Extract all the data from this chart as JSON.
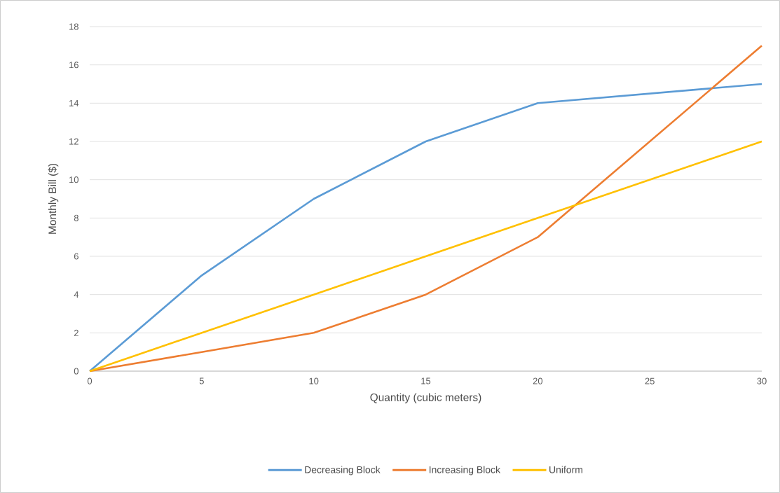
{
  "chart_data": {
    "type": "line",
    "xlabel": "Quantity (cubic meters)",
    "ylabel": "Monthly Bill ($)",
    "xlim": [
      0,
      30
    ],
    "xticks": [
      0,
      5,
      10,
      15,
      20,
      25,
      30
    ],
    "ylim": [
      0,
      18
    ],
    "yticks": [
      0,
      2,
      4,
      6,
      8,
      10,
      12,
      14,
      16,
      18
    ],
    "grid": "y",
    "legend": "bottom",
    "series": [
      {
        "name": "Decreasing Block",
        "color": "#5b9bd5",
        "x": [
          0,
          5,
          10,
          15,
          20,
          30
        ],
        "values": [
          0,
          5,
          9,
          12,
          14,
          15
        ]
      },
      {
        "name": "Increasing Block",
        "color": "#ed7d31",
        "x": [
          0,
          5,
          10,
          15,
          20,
          30
        ],
        "values": [
          0,
          1,
          2,
          4,
          7,
          17
        ]
      },
      {
        "name": "Uniform",
        "color": "#ffc000",
        "x": [
          0,
          5,
          10,
          15,
          20,
          30
        ],
        "values": [
          0,
          2,
          4,
          6,
          8,
          12
        ]
      }
    ]
  }
}
